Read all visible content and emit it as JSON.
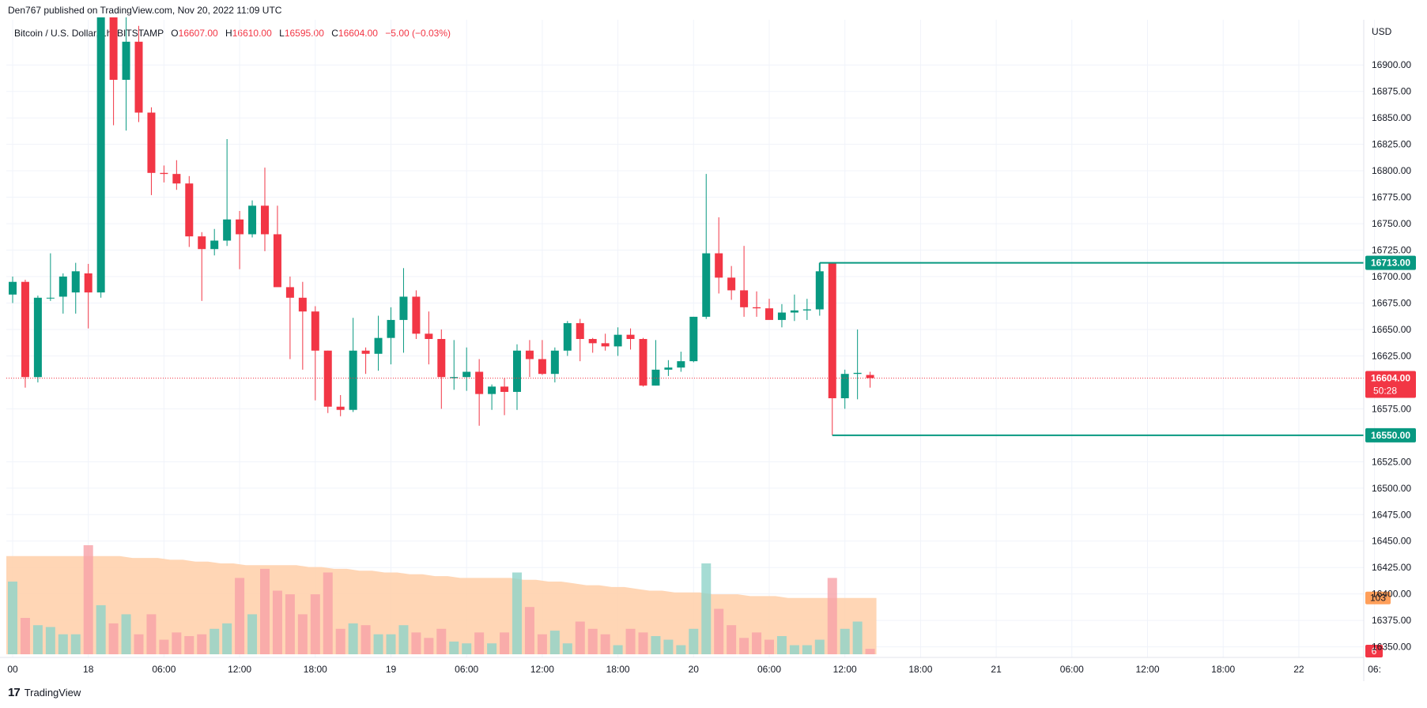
{
  "header": {
    "published": "Den767 published on TradingView.com, Nov 20, 2022 11:09 UTC"
  },
  "legend": {
    "symbol": "Bitcoin / U.S. Dollar, 1h, BITSTAMP",
    "o_label": "O",
    "o": "16607.00",
    "h_label": "H",
    "h": "16610.00",
    "l_label": "L",
    "l": "16595.00",
    "c_label": "C",
    "c": "16604.00",
    "change": "−5.00 (−0.03%)"
  },
  "footer": {
    "brand": "TradingView"
  },
  "colors": {
    "up": "#089981",
    "down": "#f23645",
    "up_volume": "#8fd3c9",
    "down_volume": "#f7a1a8",
    "volume_ma": "#ffcfa8",
    "level_line": "#089981",
    "grid": "#f0f3fa"
  },
  "chart_data": {
    "type": "candlestick",
    "currency": "USD",
    "ylim": [
      16340,
      16945
    ],
    "y_ticks": [
      16900,
      16875,
      16850,
      16825,
      16800,
      16775,
      16750,
      16725,
      16700,
      16675,
      16650,
      16625,
      16575,
      16525,
      16500,
      16475,
      16450,
      16425,
      16400,
      16375,
      16350
    ],
    "y_tick_labels": [
      "16900.00",
      "16875.00",
      "16850.00",
      "16825.00",
      "16800.00",
      "16775.00",
      "16750.00",
      "16725.00",
      "16700.00",
      "16675.00",
      "16650.00",
      "16625.00",
      "16575.00",
      "16525.00",
      "16500.00",
      "16475.00",
      "16450.00",
      "16425.00",
      "16400.00",
      "16375.00",
      "16350.00"
    ],
    "x_ticks": [
      {
        "bar": 0,
        "label": "00"
      },
      {
        "bar": 6,
        "label": "18"
      },
      {
        "bar": 12,
        "label": "06:00"
      },
      {
        "bar": 18,
        "label": "12:00"
      },
      {
        "bar": 24,
        "label": "18:00"
      },
      {
        "bar": 30,
        "label": "19"
      },
      {
        "bar": 36,
        "label": "06:00"
      },
      {
        "bar": 42,
        "label": "12:00"
      },
      {
        "bar": 48,
        "label": "18:00"
      },
      {
        "bar": 54,
        "label": "20"
      },
      {
        "bar": 60,
        "label": "06:00"
      },
      {
        "bar": 66,
        "label": "12:00"
      },
      {
        "bar": 72,
        "label": "18:00"
      },
      {
        "bar": 78,
        "label": "21"
      },
      {
        "bar": 84,
        "label": "06:00"
      },
      {
        "bar": 90,
        "label": "12:00"
      },
      {
        "bar": 96,
        "label": "18:00"
      },
      {
        "bar": 102,
        "label": "22"
      },
      {
        "bar": 108,
        "label": "06:"
      }
    ],
    "candles": [
      {
        "o": 16683,
        "h": 16700,
        "l": 16675,
        "c": 16695
      },
      {
        "o": 16695,
        "h": 16697,
        "l": 16595,
        "c": 16605
      },
      {
        "o": 16605,
        "h": 16682,
        "l": 16600,
        "c": 16680
      },
      {
        "o": 16680,
        "h": 16722,
        "l": 16677,
        "c": 16680
      },
      {
        "o": 16681,
        "h": 16703,
        "l": 16665,
        "c": 16700
      },
      {
        "o": 16685,
        "h": 16713,
        "l": 16665,
        "c": 16705
      },
      {
        "o": 16703,
        "h": 16712,
        "l": 16651,
        "c": 16685
      },
      {
        "o": 16685,
        "h": 16945,
        "l": 16680,
        "c": 16945
      },
      {
        "o": 16945,
        "h": 16945,
        "l": 16843,
        "c": 16886
      },
      {
        "o": 16886,
        "h": 16945,
        "l": 16838,
        "c": 16922
      },
      {
        "o": 16922,
        "h": 16937,
        "l": 16846,
        "c": 16855
      },
      {
        "o": 16855,
        "h": 16860,
        "l": 16777,
        "c": 16798
      },
      {
        "o": 16798,
        "h": 16805,
        "l": 16789,
        "c": 16797
      },
      {
        "o": 16797,
        "h": 16810,
        "l": 16782,
        "c": 16788
      },
      {
        "o": 16788,
        "h": 16795,
        "l": 16728,
        "c": 16738
      },
      {
        "o": 16738,
        "h": 16742,
        "l": 16677,
        "c": 16726
      },
      {
        "o": 16726,
        "h": 16745,
        "l": 16720,
        "c": 16734
      },
      {
        "o": 16734,
        "h": 16830,
        "l": 16729,
        "c": 16754
      },
      {
        "o": 16754,
        "h": 16762,
        "l": 16707,
        "c": 16740
      },
      {
        "o": 16740,
        "h": 16772,
        "l": 16737,
        "c": 16767
      },
      {
        "o": 16767,
        "h": 16803,
        "l": 16724,
        "c": 16740
      },
      {
        "o": 16740,
        "h": 16767,
        "l": 16692,
        "c": 16690
      },
      {
        "o": 16690,
        "h": 16700,
        "l": 16622,
        "c": 16680
      },
      {
        "o": 16680,
        "h": 16695,
        "l": 16612,
        "c": 16667
      },
      {
        "o": 16667,
        "h": 16672,
        "l": 16583,
        "c": 16630
      },
      {
        "o": 16630,
        "h": 16630,
        "l": 16571,
        "c": 16577
      },
      {
        "o": 16577,
        "h": 16588,
        "l": 16568,
        "c": 16574
      },
      {
        "o": 16574,
        "h": 16661,
        "l": 16572,
        "c": 16630
      },
      {
        "o": 16630,
        "h": 16633,
        "l": 16608,
        "c": 16627
      },
      {
        "o": 16627,
        "h": 16663,
        "l": 16611,
        "c": 16642
      },
      {
        "o": 16642,
        "h": 16671,
        "l": 16617,
        "c": 16659
      },
      {
        "o": 16659,
        "h": 16708,
        "l": 16628,
        "c": 16681
      },
      {
        "o": 16681,
        "h": 16687,
        "l": 16641,
        "c": 16646
      },
      {
        "o": 16646,
        "h": 16667,
        "l": 16617,
        "c": 16641
      },
      {
        "o": 16641,
        "h": 16650,
        "l": 16575,
        "c": 16605
      },
      {
        "o": 16604,
        "h": 16640,
        "l": 16593,
        "c": 16605
      },
      {
        "o": 16605,
        "h": 16633,
        "l": 16592,
        "c": 16610
      },
      {
        "o": 16610,
        "h": 16622,
        "l": 16559,
        "c": 16589
      },
      {
        "o": 16589,
        "h": 16598,
        "l": 16574,
        "c": 16596
      },
      {
        "o": 16596,
        "h": 16604,
        "l": 16569,
        "c": 16591
      },
      {
        "o": 16591,
        "h": 16636,
        "l": 16574,
        "c": 16630
      },
      {
        "o": 16630,
        "h": 16640,
        "l": 16605,
        "c": 16622
      },
      {
        "o": 16622,
        "h": 16640,
        "l": 16607,
        "c": 16608
      },
      {
        "o": 16608,
        "h": 16633,
        "l": 16600,
        "c": 16630
      },
      {
        "o": 16630,
        "h": 16658,
        "l": 16625,
        "c": 16656
      },
      {
        "o": 16656,
        "h": 16660,
        "l": 16620,
        "c": 16641
      },
      {
        "o": 16641,
        "h": 16642,
        "l": 16628,
        "c": 16637
      },
      {
        "o": 16637,
        "h": 16646,
        "l": 16630,
        "c": 16634
      },
      {
        "o": 16634,
        "h": 16652,
        "l": 16625,
        "c": 16645
      },
      {
        "o": 16645,
        "h": 16651,
        "l": 16631,
        "c": 16641
      },
      {
        "o": 16641,
        "h": 16642,
        "l": 16596,
        "c": 16597
      },
      {
        "o": 16597,
        "h": 16640,
        "l": 16597,
        "c": 16612
      },
      {
        "o": 16612,
        "h": 16621,
        "l": 16606,
        "c": 16614
      },
      {
        "o": 16614,
        "h": 16629,
        "l": 16610,
        "c": 16620
      },
      {
        "o": 16620,
        "h": 16662,
        "l": 16619,
        "c": 16662
      },
      {
        "o": 16662,
        "h": 16797,
        "l": 16660,
        "c": 16722
      },
      {
        "o": 16722,
        "h": 16756,
        "l": 16684,
        "c": 16699
      },
      {
        "o": 16699,
        "h": 16710,
        "l": 16678,
        "c": 16687
      },
      {
        "o": 16687,
        "h": 16729,
        "l": 16662,
        "c": 16671
      },
      {
        "o": 16671,
        "h": 16686,
        "l": 16662,
        "c": 16670
      },
      {
        "o": 16670,
        "h": 16679,
        "l": 16660,
        "c": 16659
      },
      {
        "o": 16659,
        "h": 16674,
        "l": 16652,
        "c": 16666
      },
      {
        "o": 16666,
        "h": 16683,
        "l": 16658,
        "c": 16668
      },
      {
        "o": 16668,
        "h": 16679,
        "l": 16659,
        "c": 16669
      },
      {
        "o": 16669,
        "h": 16713,
        "l": 16663,
        "c": 16705
      },
      {
        "o": 16713,
        "h": 16713,
        "l": 16550,
        "c": 16585
      },
      {
        "o": 16585,
        "h": 16612,
        "l": 16575,
        "c": 16608
      },
      {
        "o": 16608,
        "h": 16650,
        "l": 16584,
        "c": 16609
      },
      {
        "o": 16607,
        "h": 16610,
        "l": 16595,
        "c": 16604
      }
    ],
    "volumes": [
      40,
      20,
      16,
      15,
      11,
      11,
      60,
      27,
      17,
      22,
      11,
      22,
      8,
      12,
      10,
      11,
      14,
      17,
      42,
      22,
      47,
      35,
      33,
      22,
      33,
      45,
      14,
      17,
      16,
      11,
      11,
      16,
      12,
      9,
      14,
      7,
      6,
      12,
      6,
      12,
      45,
      26,
      11,
      13,
      6,
      18,
      14,
      11,
      5,
      14,
      12,
      10,
      8,
      5,
      14,
      50,
      25,
      16,
      9,
      12,
      8,
      10,
      5,
      5,
      8,
      42,
      14,
      18,
      3
    ],
    "volume_ma": [
      54,
      54,
      54,
      54,
      54,
      54,
      54,
      54,
      54,
      54,
      53,
      53,
      53,
      52,
      52,
      51,
      51,
      50,
      50,
      49,
      49,
      49,
      49,
      49,
      48,
      48,
      47,
      47,
      46,
      46,
      45,
      45,
      44,
      44,
      43,
      43,
      42,
      42,
      42,
      42,
      42,
      41,
      41,
      40,
      40,
      39,
      38,
      38,
      37,
      37,
      36,
      35,
      35,
      34,
      34,
      34,
      33,
      33,
      33,
      32,
      32,
      32,
      31,
      31,
      31,
      31,
      31,
      31,
      31
    ],
    "volume_ylim": [
      0,
      66
    ],
    "levels": [
      {
        "price": 16713,
        "start_bar": 64,
        "label": "16713.00"
      },
      {
        "price": 16550,
        "start_bar": 65,
        "label": "16550.00"
      }
    ],
    "last_price_label": "16604.00",
    "countdown": "50:28",
    "volume_ma_label": "103",
    "last_volume_label": "6"
  }
}
